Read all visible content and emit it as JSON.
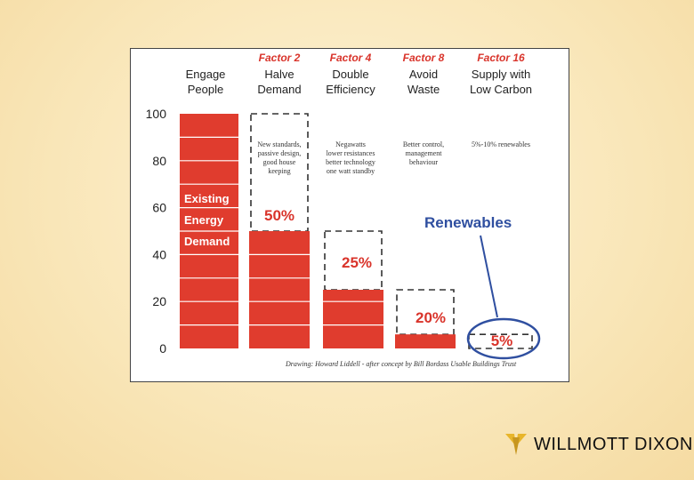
{
  "chart_data": {
    "type": "bar",
    "yticks": [
      100,
      80,
      60,
      40,
      20,
      0
    ],
    "ylim": [
      0,
      100
    ],
    "columns": [
      {
        "factor": "",
        "title": [
          "Engage",
          "People"
        ],
        "value": 100,
        "box_top": 100,
        "note": [],
        "pct_label": ""
      },
      {
        "factor": "Factor 2",
        "title": [
          "Halve",
          "Demand"
        ],
        "value": 50,
        "box_top": 100,
        "note": [
          "New standards,",
          "passive design,",
          "good house",
          "keeping"
        ],
        "pct_label": "50%"
      },
      {
        "factor": "Factor 4",
        "title": [
          "Double",
          "Efficiency"
        ],
        "value": 25,
        "box_top": 50,
        "note": [
          "Negawatts",
          "lower resistances",
          "better technology",
          "one watt standby"
        ],
        "pct_label": "25%"
      },
      {
        "factor": "Factor 8",
        "title": [
          "Avoid",
          "Waste"
        ],
        "value": 6,
        "box_top": 25,
        "note": [
          "Better control,",
          "management",
          "behaviour"
        ],
        "pct_label": "20%"
      },
      {
        "factor": "Factor 16",
        "title": [
          "Supply with",
          "Low Carbon"
        ],
        "value": 0,
        "box_top": 6,
        "note": [
          "5%-10% renewables"
        ],
        "pct_label": "5%"
      }
    ],
    "existing_label": [
      "Existing",
      "Energy",
      "Demand"
    ],
    "renewables_label": "Renewables",
    "credit": "Drawing: Howard Liddell - after concept by Bill Bordass Usable Buildings Trust"
  },
  "colors": {
    "bar": "#e03c2e",
    "accent": "#d9342b",
    "renew": "#2f4fa0"
  },
  "logo": {
    "text": "WILLMOTT DIXON",
    "icon": "willmott-dixon-logo-mark"
  }
}
